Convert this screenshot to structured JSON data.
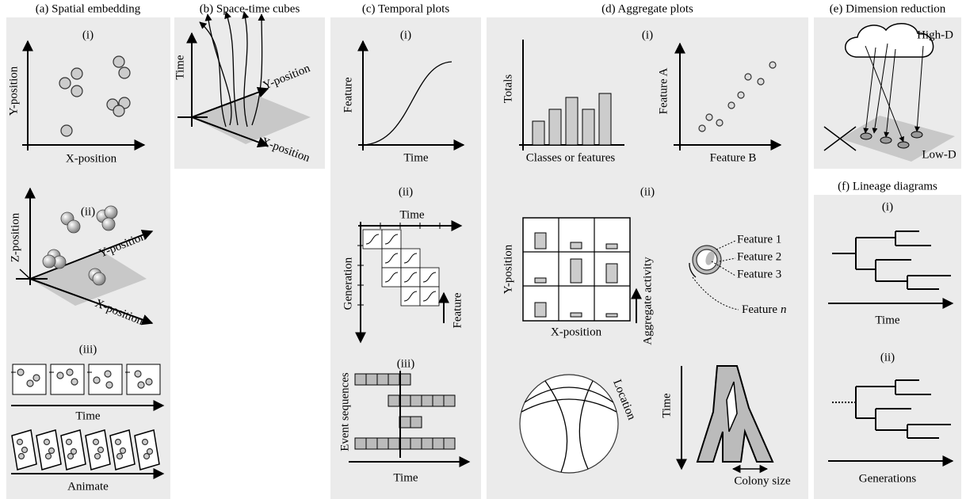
{
  "panels": {
    "a": {
      "title": "(a) Spatial embedding",
      "i": {
        "label": "(i)",
        "y_axis": "Y-position",
        "x_axis": "X-position"
      },
      "ii": {
        "label": "(ii)",
        "z_axis": "Z-position",
        "y_axis": "Y-position",
        "x_axis": "X-position"
      },
      "iii": {
        "label": "(iii)",
        "time_axis": "Time",
        "animate_axis": "Animate"
      }
    },
    "b": {
      "title": "(b) Space-time cubes",
      "time_axis": "Time",
      "y_axis": "Y-position",
      "x_axis": "X-position"
    },
    "c": {
      "title": "(c) Temporal plots",
      "i": {
        "label": "(i)",
        "y_axis": "Feature",
        "x_axis": "Time"
      },
      "ii": {
        "label": "(ii)",
        "x_axis": "Time",
        "y_axis": "Generation",
        "feature_axis": "Feature"
      },
      "iii": {
        "label": "(iii)",
        "y_axis": "Event sequences",
        "x_axis": "Time"
      }
    },
    "d": {
      "title": "(d) Aggregate plots",
      "i": {
        "label": "(i)",
        "bar_y_axis": "Totals",
        "bar_x_axis": "Classes or features",
        "scatter_y_axis": "Feature A",
        "scatter_x_axis": "Feature B"
      },
      "ii": {
        "label": "(ii)",
        "y_axis": "Y-position",
        "x_axis": "X-position",
        "activity_axis": "Aggregate activity",
        "features": [
          "Feature 1",
          "Feature 2",
          "Feature 3"
        ],
        "feature_n": {
          "prefix": "Feature",
          "variable": "n"
        },
        "circle_label": "Location",
        "time_axis": "Time",
        "size_axis": "Colony size"
      }
    },
    "e": {
      "title": "(e) Dimension reduction",
      "high": "High-D",
      "low": "Low-D"
    },
    "f": {
      "title": "(f) Lineage diagrams",
      "i": {
        "label": "(i)",
        "x_axis": "Time"
      },
      "ii": {
        "label": "(ii)",
        "x_axis": "Generations"
      }
    }
  }
}
